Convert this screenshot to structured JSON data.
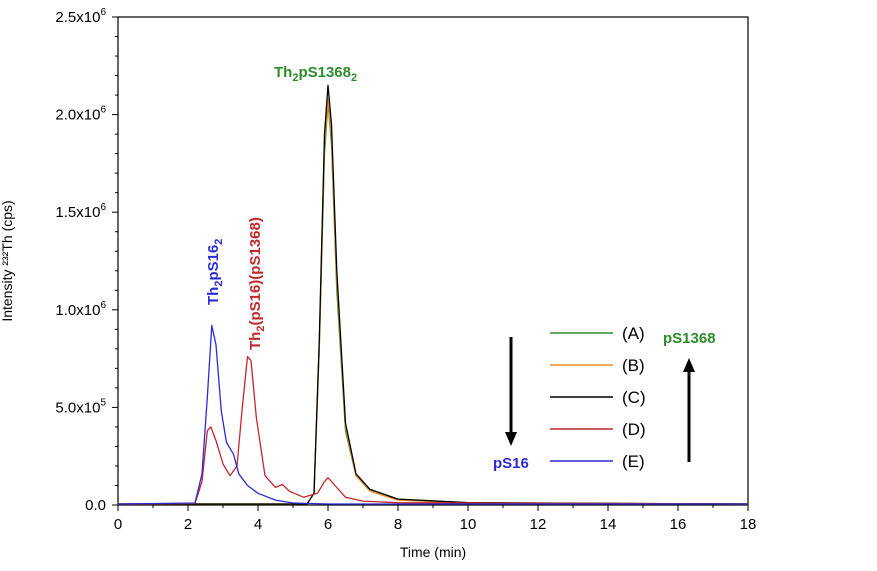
{
  "chart_data": {
    "type": "line",
    "xlabel": "Time (min)",
    "ylabel": "Intensity ²³²Th (cps)",
    "xlim": [
      0,
      18
    ],
    "ylim": [
      0,
      2500000
    ],
    "x_ticks": [
      0,
      2,
      4,
      6,
      8,
      10,
      12,
      14,
      16,
      18
    ],
    "y_ticks": [
      {
        "value": 0,
        "mant": "0.0",
        "exp": ""
      },
      {
        "value": 500000,
        "mant": "5.0x10",
        "exp": "5"
      },
      {
        "value": 1000000,
        "mant": "1.0x10",
        "exp": "6"
      },
      {
        "value": 1500000,
        "mant": "1.5x10",
        "exp": "6"
      },
      {
        "value": 2000000,
        "mant": "2.0x10",
        "exp": "6"
      },
      {
        "value": 2500000,
        "mant": "2.5x10",
        "exp": "6"
      }
    ],
    "grid": false,
    "legend_position": "right",
    "series": [
      {
        "name": "(A)",
        "color": "#2e8b2e",
        "points": [
          [
            0,
            5000
          ],
          [
            5.4,
            5000
          ],
          [
            5.6,
            60000
          ],
          [
            5.75,
            800000
          ],
          [
            5.9,
            1800000
          ],
          [
            6.0,
            2060000
          ],
          [
            6.1,
            1850000
          ],
          [
            6.25,
            1100000
          ],
          [
            6.5,
            380000
          ],
          [
            6.8,
            150000
          ],
          [
            7.2,
            80000
          ],
          [
            8,
            30000
          ],
          [
            10,
            12000
          ],
          [
            18,
            5000
          ]
        ]
      },
      {
        "name": "(B)",
        "color": "#f08c1a",
        "points": [
          [
            0,
            5000
          ],
          [
            5.4,
            5000
          ],
          [
            5.6,
            60000
          ],
          [
            5.75,
            820000
          ],
          [
            5.9,
            1850000
          ],
          [
            6.0,
            2080000
          ],
          [
            6.1,
            1880000
          ],
          [
            6.25,
            1150000
          ],
          [
            6.5,
            400000
          ],
          [
            6.8,
            150000
          ],
          [
            7.2,
            70000
          ],
          [
            8,
            25000
          ],
          [
            10,
            10000
          ],
          [
            18,
            5000
          ]
        ]
      },
      {
        "name": "(C)",
        "color": "#000000",
        "points": [
          [
            0,
            5000
          ],
          [
            5.4,
            5000
          ],
          [
            5.6,
            60000
          ],
          [
            5.75,
            850000
          ],
          [
            5.9,
            1900000
          ],
          [
            6.0,
            2150000
          ],
          [
            6.1,
            1950000
          ],
          [
            6.25,
            1200000
          ],
          [
            6.5,
            420000
          ],
          [
            6.8,
            160000
          ],
          [
            7.2,
            80000
          ],
          [
            8,
            30000
          ],
          [
            10,
            12000
          ],
          [
            18,
            5000
          ]
        ]
      },
      {
        "name": "(D)",
        "color": "#c0272d",
        "points": [
          [
            0,
            5000
          ],
          [
            2.2,
            8000
          ],
          [
            2.4,
            120000
          ],
          [
            2.55,
            380000
          ],
          [
            2.65,
            400000
          ],
          [
            2.8,
            330000
          ],
          [
            3.0,
            210000
          ],
          [
            3.2,
            150000
          ],
          [
            3.4,
            200000
          ],
          [
            3.55,
            500000
          ],
          [
            3.7,
            760000
          ],
          [
            3.8,
            740000
          ],
          [
            3.95,
            450000
          ],
          [
            4.2,
            150000
          ],
          [
            4.5,
            90000
          ],
          [
            4.7,
            105000
          ],
          [
            4.9,
            70000
          ],
          [
            5.3,
            40000
          ],
          [
            5.7,
            60000
          ],
          [
            5.9,
            120000
          ],
          [
            6.0,
            140000
          ],
          [
            6.2,
            100000
          ],
          [
            6.5,
            40000
          ],
          [
            7.0,
            20000
          ],
          [
            8,
            12000
          ],
          [
            18,
            5000
          ]
        ]
      },
      {
        "name": "(E)",
        "color": "#2b2bd4",
        "points": [
          [
            0,
            5000
          ],
          [
            2.2,
            10000
          ],
          [
            2.4,
            160000
          ],
          [
            2.55,
            550000
          ],
          [
            2.68,
            920000
          ],
          [
            2.8,
            820000
          ],
          [
            2.95,
            480000
          ],
          [
            3.1,
            320000
          ],
          [
            3.3,
            260000
          ],
          [
            3.45,
            160000
          ],
          [
            3.7,
            100000
          ],
          [
            4.0,
            60000
          ],
          [
            4.5,
            25000
          ],
          [
            5.0,
            10000
          ],
          [
            6,
            5000
          ],
          [
            18,
            5000
          ]
        ]
      }
    ],
    "annotations": [
      {
        "main": "Th",
        "sub1": "2",
        "mid": "pS1368",
        "sub2": "2",
        "rest": "",
        "color": "#2e8b2e"
      },
      {
        "main": "Th",
        "sub1": "2",
        "mid": "pS16",
        "sub2": "2",
        "rest": "",
        "color": "#2b2bd4"
      },
      {
        "main": "Th",
        "sub1": "2",
        "mid": "(pS16)(pS1368)",
        "sub2": "",
        "rest": "",
        "color": "#c0272d"
      },
      {
        "text": "pS16",
        "color": "#2b2bd4"
      },
      {
        "text": "pS1368",
        "color": "#2e8b2e"
      }
    ]
  }
}
